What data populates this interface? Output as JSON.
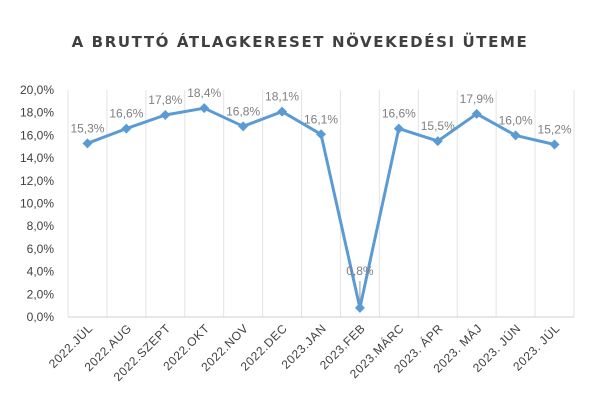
{
  "chart_data": {
    "type": "line",
    "title": "A BRUTTÓ ÁTLAGKERESET NÖVEKEDÉSI ÜTEME",
    "categories": [
      "2022.JÚL",
      "2022.AUG",
      "2022.SZEPT",
      "2022.OKT",
      "2022.NOV",
      "2022.DEC",
      "2023.JAN",
      "2023.FEB",
      "2023.MÁRC",
      "2023. ÁPR",
      "2023. MÁJ",
      "2023. JÚN",
      "2023. JÚL"
    ],
    "values": [
      15.3,
      16.6,
      17.8,
      18.4,
      16.8,
      18.1,
      16.1,
      0.8,
      16.6,
      15.5,
      17.9,
      16.0,
      15.2
    ],
    "data_labels": [
      "15,3%",
      "16,6%",
      "17,8%",
      "18,4%",
      "16,8%",
      "18,1%",
      "16,1%",
      "0,8%",
      "16,6%",
      "15,5%",
      "17,9%",
      "16,0%",
      "15,2%"
    ],
    "y_ticks": [
      "0,0%",
      "2,0%",
      "4,0%",
      "6,0%",
      "8,0%",
      "10,0%",
      "12,0%",
      "14,0%",
      "16,0%",
      "18,0%",
      "20,0%"
    ],
    "ylim": [
      0,
      20
    ],
    "xlabel": "",
    "ylabel": "",
    "grid": "vertical category lines",
    "legend": "none",
    "marker": "diamond",
    "colors": {
      "series": "#5b9bd5",
      "grid": "#e3e3e3",
      "text": "#404040",
      "label": "#7f7f7f"
    }
  }
}
